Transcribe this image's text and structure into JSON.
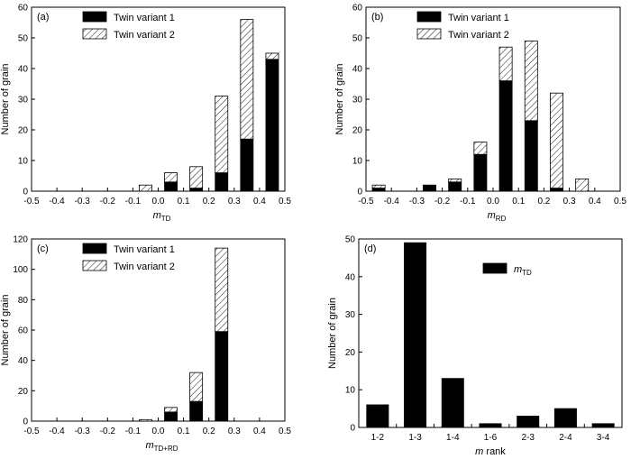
{
  "chart_data": [
    {
      "panel_label": "(a)",
      "type": "bar",
      "stacked": true,
      "xlabel": {
        "main": "m",
        "sub": "TD"
      },
      "ylabel": "Number of grain",
      "xlim": [
        -0.5,
        0.5
      ],
      "ylim": [
        0,
        60
      ],
      "xticks": [
        -0.5,
        -0.4,
        -0.3,
        -0.2,
        -0.1,
        0.0,
        0.1,
        0.2,
        0.3,
        0.4,
        0.5
      ],
      "xtick_labels": [
        "-0.5",
        "-0.4",
        "-0.3",
        "-0.2",
        "-0.1",
        "0.0",
        "0.1",
        "0.2",
        "0.3",
        "0.4",
        "0.5"
      ],
      "yticks": [
        0,
        10,
        20,
        30,
        40,
        50,
        60
      ],
      "bin_centers": [
        -0.05,
        0.05,
        0.15,
        0.25,
        0.35,
        0.45
      ],
      "bar_width": 0.05,
      "legend_position": "top-center",
      "series": [
        {
          "name": "Twin variant 1",
          "fill": "solid",
          "values": [
            0,
            3,
            1,
            6,
            17,
            43
          ]
        },
        {
          "name": "Twin variant 2",
          "fill": "hatched",
          "values": [
            2,
            3,
            7,
            25,
            39,
            2
          ]
        }
      ]
    },
    {
      "panel_label": "(b)",
      "type": "bar",
      "stacked": true,
      "xlabel": {
        "main": "m",
        "sub": "RD"
      },
      "ylabel": "Number of grain",
      "xlim": [
        -0.5,
        0.5
      ],
      "ylim": [
        0,
        60
      ],
      "xticks": [
        -0.5,
        -0.4,
        -0.3,
        -0.2,
        -0.1,
        0.0,
        0.1,
        0.2,
        0.3,
        0.4,
        0.5
      ],
      "xtick_labels": [
        "-0.5",
        "-0.4",
        "-0.3",
        "-0.2",
        "-0.1",
        "0.0",
        "0.1",
        "0.2",
        "0.3",
        "0.4",
        "0.5"
      ],
      "yticks": [
        0,
        10,
        20,
        30,
        40,
        50,
        60
      ],
      "bin_centers": [
        -0.45,
        -0.25,
        -0.15,
        -0.05,
        0.05,
        0.15,
        0.25,
        0.35
      ],
      "bar_width": 0.05,
      "legend_position": "top-center",
      "series": [
        {
          "name": "Twin variant 1",
          "fill": "solid",
          "values": [
            1,
            2,
            3,
            12,
            36,
            23,
            1,
            0
          ]
        },
        {
          "name": "Twin variant 2",
          "fill": "hatched",
          "values": [
            1,
            0,
            1,
            4,
            11,
            26,
            31,
            4
          ]
        }
      ]
    },
    {
      "panel_label": "(c)",
      "type": "bar",
      "stacked": true,
      "xlabel": {
        "main": "m",
        "sub": "TD+RD"
      },
      "ylabel": "Number of grain",
      "xlim": [
        -0.5,
        0.5
      ],
      "ylim": [
        0,
        120
      ],
      "xticks": [
        -0.5,
        -0.4,
        -0.3,
        -0.2,
        -0.1,
        0.0,
        0.1,
        0.2,
        0.3,
        0.4,
        0.5
      ],
      "xtick_labels": [
        "-0.5",
        "-0.4",
        "-0.3",
        "-0.2",
        "-0.1",
        "0.0",
        "0.1",
        "0.2",
        "0.3",
        "0.4",
        "0.5"
      ],
      "yticks": [
        0,
        20,
        40,
        60,
        80,
        100,
        120
      ],
      "bin_centers": [
        -0.05,
        0.05,
        0.15,
        0.25
      ],
      "bar_width": 0.05,
      "legend_position": "top-center",
      "series": [
        {
          "name": "Twin variant 1",
          "fill": "solid",
          "values": [
            0,
            6,
            13,
            59
          ]
        },
        {
          "name": "Twin variant 2",
          "fill": "hatched",
          "values": [
            1,
            3,
            19,
            55
          ]
        }
      ]
    },
    {
      "panel_label": "(d)",
      "type": "bar",
      "stacked": false,
      "xlabel": {
        "main": "m rank",
        "sub": ""
      },
      "ylabel": "Number of grain",
      "ylim": [
        0,
        50
      ],
      "yticks": [
        0,
        10,
        20,
        30,
        40,
        50
      ],
      "categories": [
        "1-2",
        "1-3",
        "1-4",
        "1-6",
        "2-3",
        "2-4",
        "3-4"
      ],
      "legend_position": "top-center",
      "series": [
        {
          "name": {
            "main": "m",
            "sub": "TD"
          },
          "fill": "solid",
          "values": [
            6,
            49,
            13,
            1,
            3,
            5,
            1
          ]
        }
      ]
    }
  ]
}
